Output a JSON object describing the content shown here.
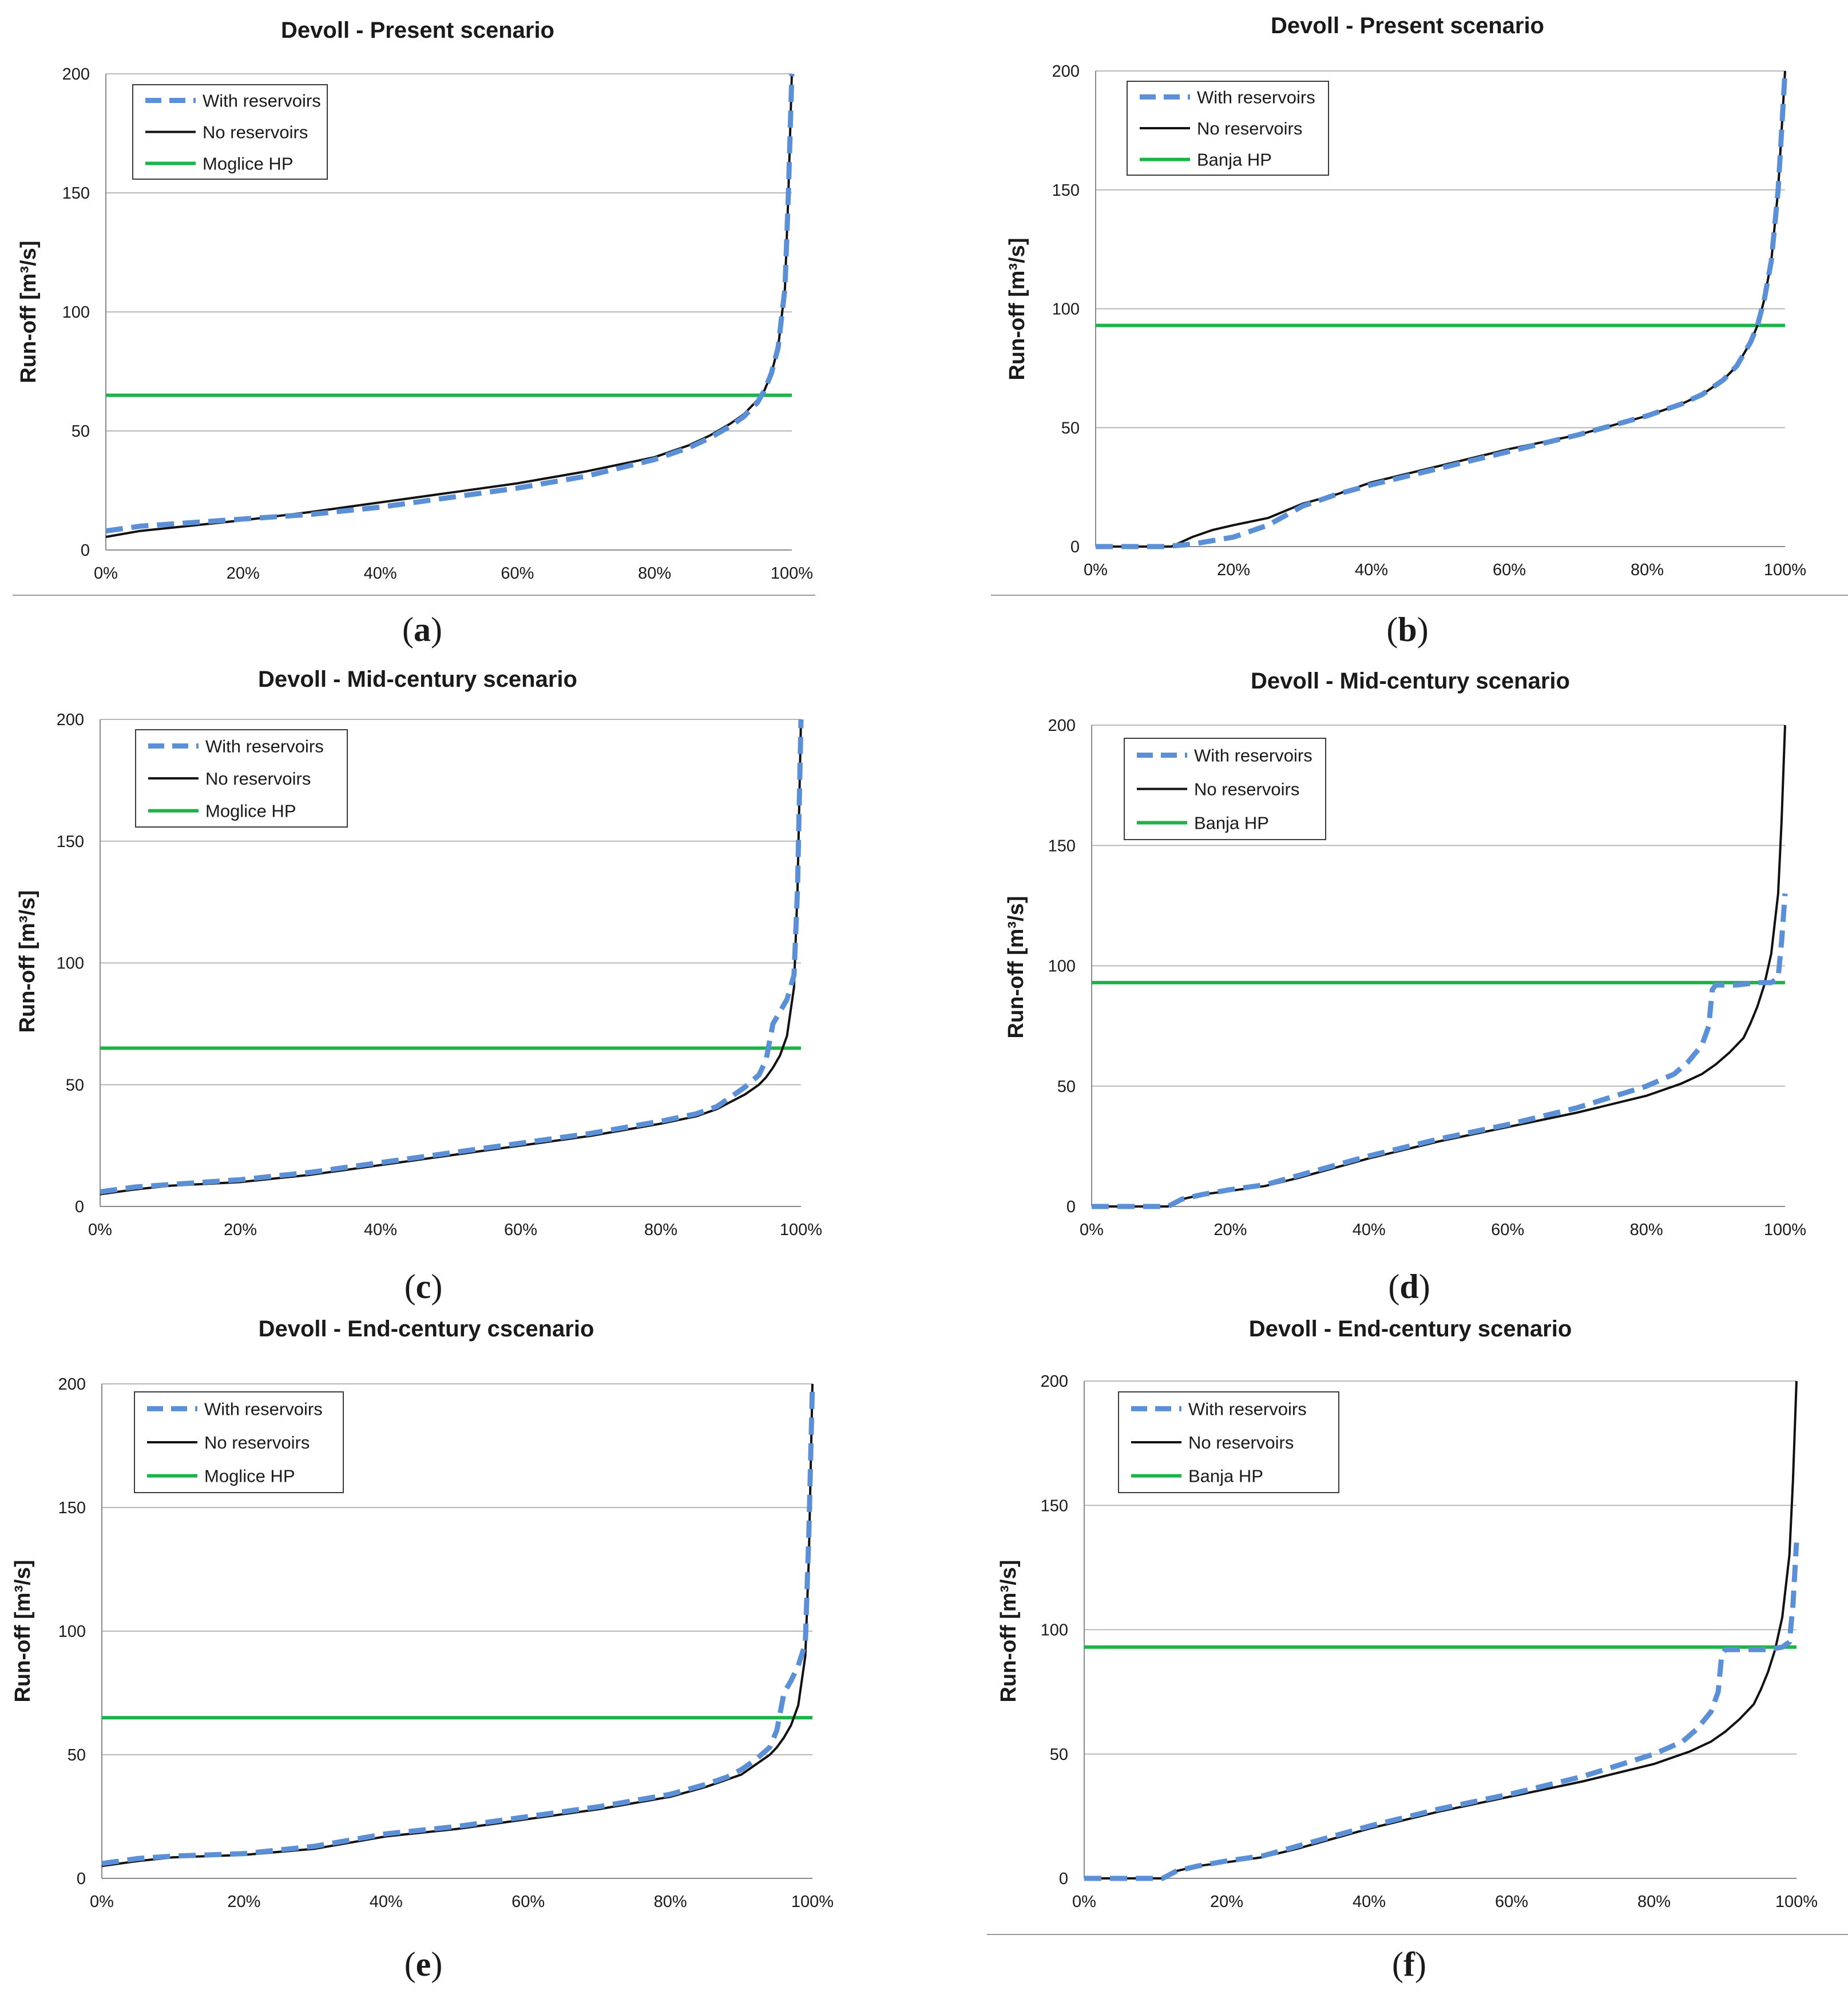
{
  "chart_data": [
    {
      "panel": "a",
      "type": "line",
      "title": "Devoll - Present  scenario",
      "xlabel": "",
      "ylabel": "Run-off [m³/s]",
      "xlim": [
        0,
        100
      ],
      "ylim": [
        0,
        200
      ],
      "x_ticks": [
        "0%",
        "20%",
        "40%",
        "60%",
        "80%",
        "100%"
      ],
      "y_ticks": [
        "0",
        "50",
        "100",
        "150",
        "200"
      ],
      "grid": "horizontal",
      "legend_position": "top-left",
      "series": [
        {
          "name": "With reservoirs",
          "style": "dashed",
          "color": "#5b8fd6",
          "x": [
            0,
            5,
            10,
            20,
            30,
            40,
            50,
            60,
            70,
            80,
            85,
            88,
            91,
            93,
            95,
            96,
            97,
            98,
            99,
            99.5,
            100
          ],
          "y": [
            8,
            10,
            11,
            13,
            15,
            18,
            22,
            26,
            31,
            38,
            43,
            47,
            52,
            56,
            62,
            67,
            74,
            85,
            110,
            150,
            200
          ]
        },
        {
          "name": "No reservoirs",
          "style": "solid",
          "color": "#111111",
          "x": [
            0,
            5,
            10,
            20,
            30,
            40,
            50,
            60,
            70,
            80,
            85,
            88,
            91,
            93,
            95,
            96,
            97,
            98,
            99,
            99.5,
            100
          ],
          "y": [
            5.5,
            8,
            9.5,
            12.5,
            16,
            20,
            24,
            28,
            33,
            39,
            44,
            48,
            53,
            57,
            63,
            67,
            74,
            85,
            110,
            150,
            200
          ]
        },
        {
          "name": "Moglice HP",
          "style": "solid",
          "color": "#1db24a",
          "x": [
            0,
            100
          ],
          "y": [
            65,
            65
          ]
        }
      ]
    },
    {
      "panel": "b",
      "type": "line",
      "title": "Devoll - Present scenario",
      "xlabel": "",
      "ylabel": "Run-off [m³/s]",
      "xlim": [
        0,
        100
      ],
      "ylim": [
        0,
        200
      ],
      "x_ticks": [
        "0%",
        "20%",
        "40%",
        "60%",
        "80%",
        "100%"
      ],
      "y_ticks": [
        "0",
        "50",
        "100",
        "150",
        "200"
      ],
      "grid": "horizontal",
      "legend_position": "top-left",
      "series": [
        {
          "name": "With reservoirs",
          "style": "dashed",
          "color": "#5b8fd6",
          "x": [
            0,
            10,
            14,
            20,
            25,
            30,
            35,
            40,
            50,
            60,
            70,
            80,
            85,
            88,
            91,
            93,
            95,
            96,
            97,
            98,
            99,
            99.5,
            100
          ],
          "y": [
            0,
            0,
            1,
            4,
            9,
            17,
            22,
            26,
            33,
            40,
            47,
            55,
            60,
            64,
            70,
            76,
            86,
            93,
            104,
            120,
            150,
            175,
            200
          ]
        },
        {
          "name": "No reservoirs",
          "style": "solid",
          "color": "#111111",
          "x": [
            0,
            11,
            14,
            17,
            20,
            25,
            30,
            35,
            40,
            50,
            60,
            70,
            80,
            85,
            88,
            91,
            93,
            95,
            96,
            97,
            98,
            99,
            99.5,
            100
          ],
          "y": [
            0,
            0,
            4,
            7,
            9,
            12,
            18,
            22,
            27,
            34,
            41,
            47,
            55,
            60,
            64,
            70,
            76,
            86,
            93,
            104,
            120,
            150,
            175,
            200
          ]
        },
        {
          "name": "Banja HP",
          "style": "solid",
          "color": "#1db24a",
          "x": [
            0,
            100
          ],
          "y": [
            93,
            93
          ]
        }
      ]
    },
    {
      "panel": "c",
      "type": "line",
      "title": "Devoll - Mid-century scenario",
      "xlabel": "",
      "ylabel": "Run-off [m³/s]",
      "xlim": [
        0,
        100
      ],
      "ylim": [
        0,
        200
      ],
      "x_ticks": [
        "0%",
        "20%",
        "40%",
        "60%",
        "80%",
        "100%"
      ],
      "y_ticks": [
        "0",
        "50",
        "100",
        "150",
        "200"
      ],
      "grid": "horizontal",
      "legend_position": "top-left",
      "series": [
        {
          "name": "With reservoirs",
          "style": "dashed",
          "color": "#5b8fd6",
          "x": [
            0,
            5,
            10,
            20,
            30,
            40,
            50,
            60,
            70,
            80,
            85,
            88,
            90,
            92,
            94,
            95,
            96,
            97,
            98,
            99,
            99.5,
            100
          ],
          "y": [
            6,
            8,
            9,
            11,
            14,
            18,
            22,
            26,
            30,
            35,
            38,
            41,
            45,
            49,
            54,
            60,
            75,
            80,
            85,
            95,
            130,
            200
          ]
        },
        {
          "name": "No reservoirs",
          "style": "solid",
          "color": "#111111",
          "x": [
            0,
            5,
            10,
            20,
            30,
            40,
            50,
            60,
            70,
            80,
            85,
            88,
            90,
            92,
            94,
            95,
            96,
            97,
            98,
            99,
            99.5,
            100
          ],
          "y": [
            5,
            7,
            8.5,
            10,
            13,
            17,
            21,
            25,
            29,
            34,
            37,
            40,
            43,
            46,
            50,
            53,
            57,
            62,
            70,
            90,
            130,
            200
          ]
        },
        {
          "name": "Moglice HP",
          "style": "solid",
          "color": "#1db24a",
          "x": [
            0,
            100
          ],
          "y": [
            65,
            65
          ]
        }
      ]
    },
    {
      "panel": "d",
      "type": "line",
      "title": "Devoll - Mid-century scenario",
      "xlabel": "",
      "ylabel": "Run-off [m³/s]",
      "xlim": [
        0,
        100
      ],
      "ylim": [
        0,
        200
      ],
      "x_ticks": [
        "0%",
        "20%",
        "40%",
        "60%",
        "80%",
        "100%"
      ],
      "y_ticks": [
        "0",
        "50",
        "100",
        "150",
        "200"
      ],
      "grid": "horizontal",
      "legend_position": "top-left",
      "series": [
        {
          "name": "With reservoirs",
          "style": "dashed",
          "color": "#5b8fd6",
          "x": [
            0,
            11,
            13,
            16,
            20,
            25,
            30,
            40,
            50,
            60,
            70,
            80,
            84,
            86,
            88,
            89,
            89.5,
            90,
            93,
            96,
            98,
            99,
            99.5,
            100
          ],
          "y": [
            0,
            0,
            3,
            5,
            7,
            9,
            13,
            21,
            28,
            34,
            41,
            50,
            55,
            60,
            67,
            75,
            90,
            92,
            92,
            93,
            93,
            95,
            110,
            130
          ]
        },
        {
          "name": "No reservoirs",
          "style": "solid",
          "color": "#111111",
          "x": [
            0,
            11,
            13,
            16,
            20,
            25,
            30,
            40,
            50,
            60,
            70,
            80,
            85,
            88,
            90,
            92,
            94,
            95,
            96,
            97,
            98,
            99,
            99.5,
            100
          ],
          "y": [
            0,
            0,
            3,
            5,
            6.5,
            8.5,
            12,
            20,
            27,
            33,
            39,
            46,
            51,
            55,
            59,
            64,
            70,
            76,
            83,
            92,
            105,
            130,
            160,
            200
          ]
        },
        {
          "name": "Banja HP",
          "style": "solid",
          "color": "#1db24a",
          "x": [
            0,
            100
          ],
          "y": [
            93,
            93
          ]
        }
      ]
    },
    {
      "panel": "e",
      "type": "line",
      "title": "Devoll  - End-century cscenario",
      "xlabel": "",
      "ylabel": "Run-off [m³/s]",
      "xlim": [
        0,
        100
      ],
      "ylim": [
        0,
        200
      ],
      "x_ticks": [
        "0%",
        "20%",
        "40%",
        "60%",
        "80%",
        "100%"
      ],
      "y_ticks": [
        "0",
        "50",
        "100",
        "150",
        "200"
      ],
      "grid": "horizontal",
      "legend_position": "top-left",
      "series": [
        {
          "name": "With reservoirs",
          "style": "dashed",
          "color": "#5b8fd6",
          "x": [
            0,
            5,
            10,
            20,
            30,
            40,
            50,
            60,
            70,
            80,
            85,
            88,
            90,
            92,
            94,
            95,
            96,
            97,
            98,
            99,
            99.5,
            100
          ],
          "y": [
            6,
            8,
            9,
            10,
            13,
            18,
            21,
            25,
            29,
            34,
            38,
            41,
            44,
            48,
            53,
            60,
            75,
            80,
            86,
            95,
            140,
            200
          ]
        },
        {
          "name": "No reservoirs",
          "style": "solid",
          "color": "#111111",
          "x": [
            0,
            5,
            10,
            20,
            30,
            40,
            50,
            60,
            70,
            80,
            85,
            88,
            90,
            92,
            94,
            95,
            96,
            97,
            98,
            99,
            99.5,
            100
          ],
          "y": [
            5,
            7,
            8.5,
            9.5,
            12,
            17,
            20,
            24,
            28,
            33,
            37,
            40,
            42,
            46,
            50,
            53,
            57,
            62,
            70,
            90,
            130,
            200
          ]
        },
        {
          "name": "Moglice HP",
          "style": "solid",
          "color": "#1db24a",
          "x": [
            0,
            100
          ],
          "y": [
            65,
            65
          ]
        }
      ]
    },
    {
      "panel": "f",
      "type": "line",
      "title": "Devoll - End-century scenario",
      "xlabel": "",
      "ylabel": "Run-off [m³/s]",
      "xlim": [
        0,
        100
      ],
      "ylim": [
        0,
        200
      ],
      "x_ticks": [
        "0%",
        "20%",
        "40%",
        "60%",
        "80%",
        "100%"
      ],
      "y_ticks": [
        "0",
        "50",
        "100",
        "150",
        "200"
      ],
      "grid": "horizontal",
      "legend_position": "top-left",
      "series": [
        {
          "name": "With reservoirs",
          "style": "dashed",
          "color": "#5b8fd6",
          "x": [
            0,
            11,
            13,
            16,
            20,
            25,
            30,
            40,
            50,
            60,
            70,
            80,
            84,
            86,
            88,
            89,
            89.5,
            90,
            93,
            96,
            98,
            99,
            99.5,
            100
          ],
          "y": [
            0,
            0,
            3,
            5,
            7,
            9,
            13,
            21,
            28,
            34,
            41,
            50,
            55,
            60,
            67,
            75,
            90,
            92,
            92,
            92,
            93,
            95,
            110,
            135
          ]
        },
        {
          "name": "No reservoirs",
          "style": "solid",
          "color": "#111111",
          "x": [
            0,
            11,
            13,
            16,
            20,
            25,
            30,
            40,
            50,
            60,
            70,
            80,
            85,
            88,
            90,
            92,
            94,
            95,
            96,
            97,
            98,
            99,
            99.5,
            100
          ],
          "y": [
            0,
            0,
            3,
            5,
            6.5,
            8.5,
            12,
            20,
            27,
            33,
            39,
            46,
            51,
            55,
            59,
            64,
            70,
            76,
            83,
            92,
            105,
            130,
            160,
            200
          ]
        },
        {
          "name": "Banja HP",
          "style": "solid",
          "color": "#1db24a",
          "x": [
            0,
            100
          ],
          "y": [
            93,
            93
          ]
        }
      ]
    }
  ],
  "panel_labels": [
    {
      "open": "(",
      "letter": "a",
      "close": ")"
    },
    {
      "open": "(",
      "letter": "b",
      "close": ")"
    },
    {
      "open": "(",
      "letter": "c",
      "close": ")"
    },
    {
      "open": "(",
      "letter": "d",
      "close": ")"
    },
    {
      "open": "(",
      "letter": "e",
      "close": ")"
    },
    {
      "open": "(",
      "letter": "f",
      "close": ")"
    }
  ]
}
